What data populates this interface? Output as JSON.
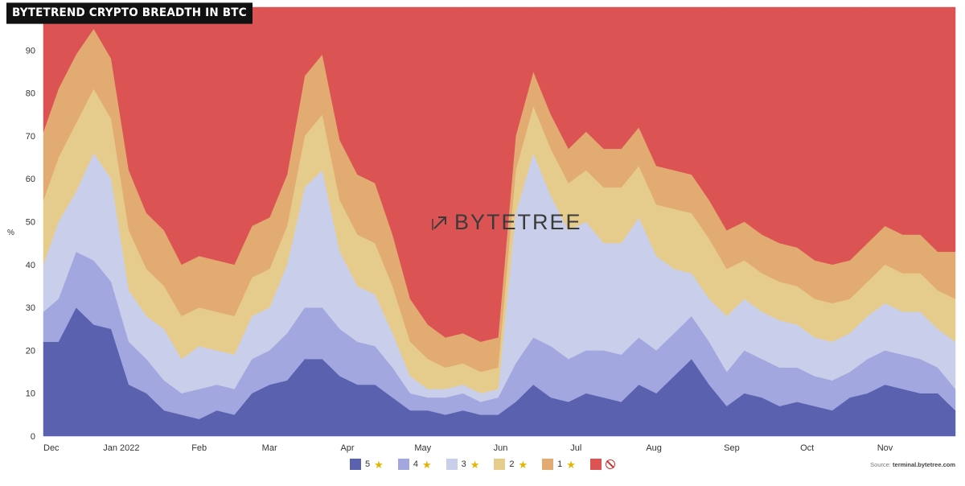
{
  "title": "BYTETREND CRYPTO BREADTH IN BTC",
  "watermark": "BYTETREE",
  "source": {
    "prefix": "Source:",
    "site": "terminal.bytetree.com"
  },
  "legend": [
    {
      "label": "5",
      "icon": "star-icon",
      "color": "#5a62b0"
    },
    {
      "label": "4",
      "icon": "star-icon",
      "color": "#a3a7df"
    },
    {
      "label": "3",
      "icon": "star-icon",
      "color": "#c9cfea"
    },
    {
      "label": "2",
      "icon": "star-icon",
      "color": "#e6cc8c"
    },
    {
      "label": "1",
      "icon": "star-icon",
      "color": "#e2ab72"
    },
    {
      "label": "",
      "icon": "no-entry-icon",
      "color": "#dc5354"
    }
  ],
  "chart_data": {
    "type": "area",
    "stacked": true,
    "title": "BYTETREND CRYPTO BREADTH IN BTC",
    "xlabel": "",
    "ylabel": "%",
    "ylim": [
      0,
      100
    ],
    "yticks": [
      0,
      10,
      20,
      30,
      40,
      50,
      60,
      70,
      80,
      90
    ],
    "xticks": [
      "Dec",
      "Jan 2022",
      "Feb",
      "Mar",
      "Apr",
      "May",
      "Jun",
      "Jul",
      "Aug",
      "Sep",
      "Oct",
      "Nov"
    ],
    "x": [
      "2021-12-01",
      "2021-12-07",
      "2021-12-14",
      "2021-12-21",
      "2021-12-28",
      "2022-01-04",
      "2022-01-11",
      "2022-01-18",
      "2022-01-25",
      "2022-02-01",
      "2022-02-08",
      "2022-02-15",
      "2022-02-22",
      "2022-03-01",
      "2022-03-08",
      "2022-03-15",
      "2022-03-22",
      "2022-03-29",
      "2022-04-05",
      "2022-04-12",
      "2022-04-19",
      "2022-04-26",
      "2022-05-03",
      "2022-05-10",
      "2022-05-17",
      "2022-05-24",
      "2022-05-31",
      "2022-06-07",
      "2022-06-14",
      "2022-06-21",
      "2022-06-28",
      "2022-07-05",
      "2022-07-12",
      "2022-07-19",
      "2022-07-26",
      "2022-08-02",
      "2022-08-09",
      "2022-08-16",
      "2022-08-23",
      "2022-08-30",
      "2022-09-06",
      "2022-09-13",
      "2022-09-20",
      "2022-09-27",
      "2022-10-04",
      "2022-10-11",
      "2022-10-18",
      "2022-10-25",
      "2022-11-01",
      "2022-11-08",
      "2022-11-15",
      "2022-11-22",
      "2022-11-29"
    ],
    "series": [
      {
        "name": "5",
        "values": [
          22,
          22,
          30,
          26,
          25,
          12,
          10,
          6,
          5,
          4,
          6,
          5,
          10,
          12,
          13,
          18,
          18,
          14,
          12,
          12,
          9,
          6,
          6,
          5,
          6,
          5,
          5,
          8,
          12,
          9,
          8,
          10,
          9,
          8,
          12,
          10,
          14,
          18,
          12,
          7,
          10,
          9,
          7,
          8,
          7,
          6,
          9,
          10,
          12,
          11,
          10,
          10,
          6
        ]
      },
      {
        "name": "4",
        "values": [
          7,
          10,
          13,
          15,
          11,
          10,
          8,
          7,
          5,
          7,
          6,
          6,
          8,
          8,
          11,
          12,
          12,
          11,
          10,
          9,
          7,
          4,
          3,
          4,
          4,
          3,
          4,
          9,
          11,
          12,
          10,
          10,
          11,
          11,
          11,
          10,
          10,
          10,
          10,
          8,
          10,
          9,
          9,
          8,
          7,
          7,
          6,
          8,
          8,
          8,
          8,
          6,
          5
        ]
      },
      {
        "name": "3",
        "values": [
          11,
          18,
          14,
          25,
          24,
          12,
          10,
          12,
          8,
          10,
          8,
          8,
          10,
          10,
          16,
          28,
          32,
          18,
          13,
          12,
          8,
          4,
          2,
          2,
          2,
          2,
          2,
          35,
          43,
          35,
          30,
          30,
          25,
          26,
          28,
          22,
          15,
          10,
          10,
          13,
          12,
          11,
          11,
          10,
          9,
          9,
          9,
          10,
          11,
          10,
          11,
          9,
          11
        ]
      },
      {
        "name": "2",
        "values": [
          15,
          15,
          16,
          15,
          14,
          14,
          11,
          10,
          10,
          9,
          9,
          9,
          9,
          9,
          9,
          12,
          13,
          12,
          12,
          12,
          11,
          8,
          7,
          5,
          5,
          5,
          5,
          10,
          11,
          11,
          11,
          12,
          13,
          13,
          12,
          12,
          14,
          14,
          14,
          11,
          9,
          9,
          9,
          9,
          9,
          9,
          8,
          8,
          9,
          9,
          9,
          9,
          10
        ]
      },
      {
        "name": "1",
        "values": [
          16,
          16,
          16,
          14,
          14,
          14,
          13,
          13,
          12,
          12,
          12,
          12,
          12,
          12,
          12,
          14,
          14,
          14,
          14,
          14,
          12,
          10,
          8,
          7,
          7,
          7,
          7,
          8,
          8,
          8,
          8,
          9,
          9,
          9,
          9,
          9,
          9,
          9,
          9,
          9,
          9,
          9,
          9,
          9,
          9,
          9,
          9,
          9,
          9,
          9,
          9,
          9,
          11
        ]
      },
      {
        "name": "0",
        "values": [
          29,
          19,
          11,
          5,
          12,
          38,
          48,
          52,
          60,
          58,
          59,
          60,
          51,
          49,
          39,
          16,
          11,
          31,
          39,
          41,
          53,
          68,
          74,
          77,
          76,
          78,
          77,
          30,
          15,
          25,
          33,
          29,
          33,
          33,
          28,
          37,
          38,
          39,
          45,
          52,
          50,
          53,
          55,
          56,
          59,
          60,
          59,
          55,
          51,
          53,
          53,
          57,
          57
        ]
      }
    ]
  }
}
